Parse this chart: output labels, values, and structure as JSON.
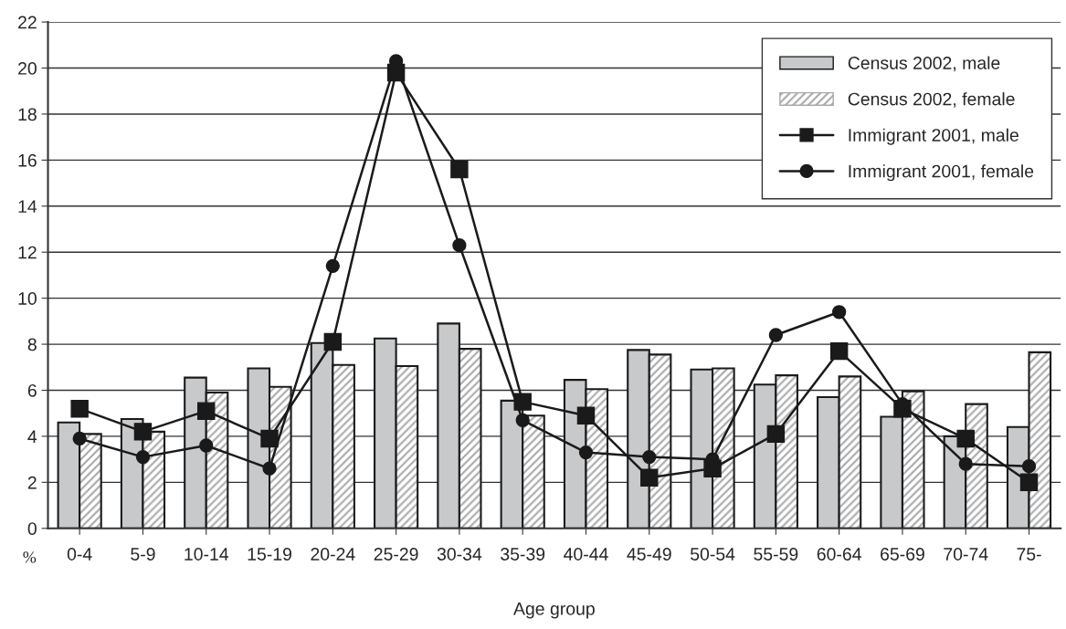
{
  "chart_data": {
    "type": "bar",
    "xlabel": "Age group",
    "ylabel": "%",
    "categories": [
      "0-4",
      "5-9",
      "10-14",
      "15-19",
      "20-24",
      "25-29",
      "30-34",
      "35-39",
      "40-44",
      "45-49",
      "50-54",
      "55-59",
      "60-64",
      "65-69",
      "70-74",
      "75-"
    ],
    "series": [
      {
        "name": "Census 2002, male",
        "color": "#c8c9cb",
        "values": [
          4.6,
          4.75,
          6.55,
          6.95,
          8.05,
          8.25,
          8.9,
          5.55,
          6.45,
          7.75,
          6.9,
          6.25,
          5.7,
          4.85,
          4.0,
          4.4
        ]
      },
      {
        "name": "Census 2002, female",
        "color": "#a9a9a9",
        "values": [
          4.1,
          4.2,
          5.9,
          6.15,
          7.1,
          7.05,
          7.8,
          4.9,
          6.05,
          7.55,
          6.95,
          6.65,
          6.6,
          5.95,
          5.4,
          7.65
        ]
      },
      {
        "name": "Immigrant 2001, male",
        "type": "line",
        "marker": "square",
        "color": "#1a1a1a",
        "values": [
          5.2,
          4.2,
          5.1,
          3.9,
          8.1,
          19.8,
          15.6,
          5.5,
          4.9,
          2.2,
          2.6,
          4.1,
          7.7,
          5.2,
          3.9,
          2.0
        ]
      },
      {
        "name": "Immigrant 2001, female",
        "type": "line",
        "marker": "circle",
        "color": "#1a1a1a",
        "values": [
          3.9,
          3.1,
          3.6,
          2.6,
          11.4,
          20.3,
          12.3,
          4.7,
          3.3,
          3.1,
          3.0,
          8.4,
          9.4,
          5.4,
          2.8,
          2.7
        ]
      }
    ],
    "ylim": [
      0,
      22
    ],
    "yticks": [
      0,
      2,
      4,
      6,
      8,
      10,
      12,
      14,
      16,
      18,
      20,
      22
    ],
    "grid": "y",
    "legend": "top right"
  }
}
